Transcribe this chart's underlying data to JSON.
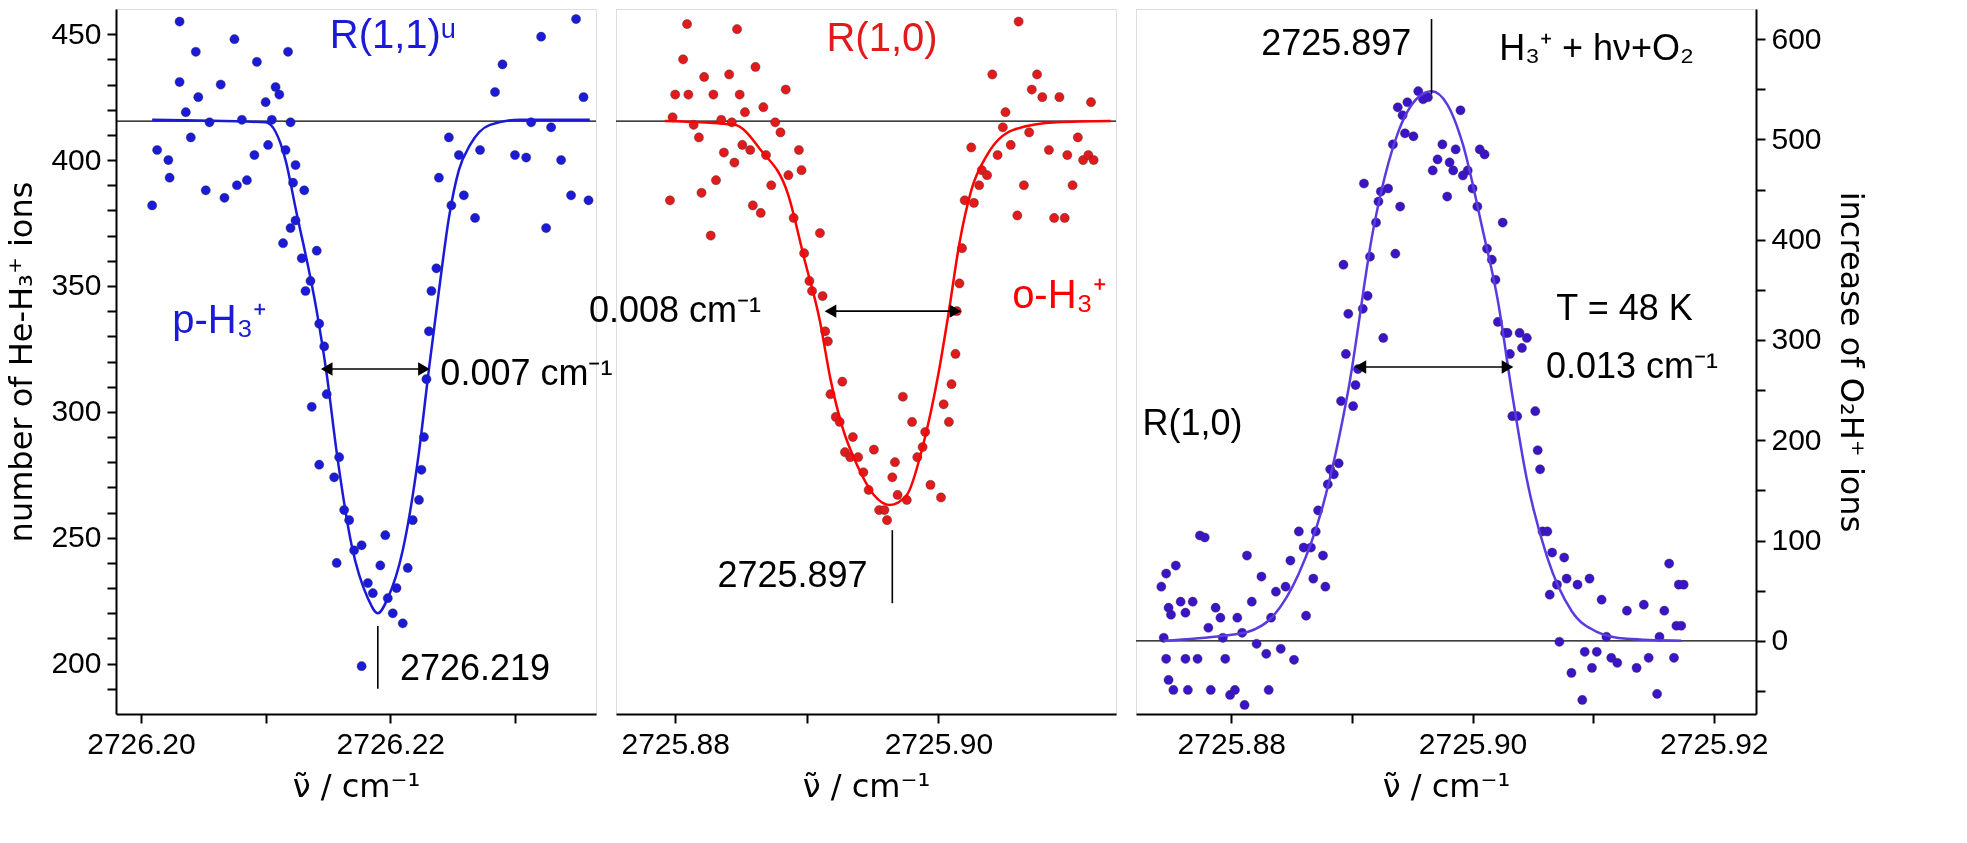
{
  "chart_data": [
    {
      "type": "scatter",
      "xlabel": "ν̃ / cm⁻¹",
      "ylabel": "number of He-H₃⁺ ions",
      "marker": "circle",
      "xlim": [
        2726.198,
        2726.2365
      ],
      "xticks": [
        {
          "value": 2726.2,
          "label": "2726.20"
        },
        {
          "value": 2726.21,
          "label": null
        },
        {
          "value": 2726.22,
          "label": "2726.22"
        },
        {
          "value": 2726.23,
          "label": null
        }
      ],
      "ylim": [
        180,
        460
      ],
      "yticks": [
        {
          "value": 190,
          "label": null
        },
        200,
        {
          "value": 210,
          "label": null
        },
        {
          "value": 220,
          "label": null
        },
        {
          "value": 230,
          "label": null
        },
        {
          "value": 240,
          "label": null
        },
        250,
        {
          "value": 260,
          "label": null
        },
        {
          "value": 270,
          "label": null
        },
        {
          "value": 280,
          "label": null
        },
        {
          "value": 290,
          "label": null
        },
        300,
        {
          "value": 310,
          "label": null
        },
        {
          "value": 320,
          "label": null
        },
        {
          "value": 330,
          "label": null
        },
        {
          "value": 340,
          "label": null
        },
        350,
        {
          "value": 360,
          "label": null
        },
        {
          "value": 370,
          "label": null
        },
        {
          "value": 380,
          "label": null
        },
        {
          "value": 390,
          "label": null
        },
        400,
        {
          "value": 410,
          "label": null
        },
        {
          "value": 420,
          "label": null
        },
        {
          "value": 430,
          "label": null
        },
        {
          "value": 440,
          "label": null
        },
        450
      ],
      "series": [
        {
          "name": "R(1,1)ᵘ",
          "color": "#1a1ad8",
          "x": [
            2726.2009,
            2726.2013,
            2726.2022,
            2726.2023,
            2726.2031,
            2726.2031,
            2726.2036,
            2726.204,
            2726.2044,
            2726.2046,
            2726.2052,
            2726.2055,
            2726.2064,
            2726.2067,
            2726.2075,
            2726.2077,
            2726.2081,
            2726.2085,
            2726.2091,
            2726.2093,
            2726.21,
            2726.2102,
            2726.2105,
            2726.2108,
            2726.2111,
            2726.2116,
            2726.2118,
            2726.212,
            2726.2122,
            2726.2124,
            2726.2131,
            2726.2114,
            2726.212,
            2726.2124,
            2726.2129,
            2726.2132,
            2726.2136,
            2726.2141,
            2726.2143,
            2726.2147,
            2726.2137,
            2726.2149,
            2726.2143,
            2726.2155,
            2726.2159,
            2726.2163,
            2726.2167,
            2726.2157,
            2726.2171,
            2726.2177,
            2726.2182,
            2726.2186,
            2726.2177,
            2726.2192,
            2726.2196,
            2726.2198,
            2726.2202,
            2726.2205,
            2726.221,
            2726.2214,
            2726.2218,
            2726.2223,
            2726.2225,
            2726.2227,
            2726.2229,
            2726.2231,
            2726.2233,
            2726.2237,
            2726.2239,
            2726.2247,
            2726.2249,
            2726.2255,
            2726.2259,
            2726.2268,
            2726.2272,
            2726.2284,
            2726.229,
            2726.23,
            2726.2309,
            2726.2313,
            2726.2325,
            2726.2321,
            2726.2329,
            2726.2337,
            2726.2345,
            2726.2349,
            2726.2355,
            2726.2359
          ],
          "values": [
            382,
            404,
            400,
            393,
            455,
            431,
            419,
            409,
            443,
            425,
            388,
            415,
            430,
            385,
            448,
            390,
            416,
            392,
            402,
            439,
            423,
            406,
            416,
            429,
            426,
            404,
            443,
            415,
            391,
            398,
            388,
            367,
            373,
            376,
            361,
            348,
            352,
            364,
            335,
            326,
            302,
            307,
            279,
            274,
            282,
            261,
            257,
            240,
            245,
            247,
            232,
            228,
            199,
            239,
            251,
            226,
            220,
            230,
            216,
            238,
            257,
            265,
            277,
            290,
            313,
            332,
            348,
            357,
            393,
            409,
            382,
            402,
            386,
            377,
            404,
            427,
            438,
            402,
            401,
            415,
            373,
            449,
            413,
            400,
            386,
            456,
            425,
            384
          ]
        },
        {
          "type": "line",
          "name": "p-H₃⁺",
          "marker": "none",
          "line_style": "solid",
          "color": "#1a1ad8",
          "x": [
            2726.2009,
            2726.21,
            2726.2116,
            2726.2124,
            2726.2141,
            2726.2149,
            2726.2157,
            2726.2169,
            2726.2182,
            2726.219,
            2726.2198,
            2726.221,
            2726.2223,
            2726.2231,
            2726.2239,
            2726.2247,
            2726.2255,
            2726.2264,
            2726.228,
            2726.2304,
            2726.236
          ],
          "values": [
            416,
            415,
            400,
            381,
            340,
            315,
            284,
            247,
            226,
            220,
            226,
            245,
            284,
            317,
            348,
            377,
            396,
            406,
            414,
            416,
            416
          ]
        },
        {
          "type": "line",
          "marker": "triangle",
          "line_style": "solid",
          "color": "#000000",
          "x": [
            2726.2149,
            2726.2227
          ],
          "values": [
            317,
            317
          ]
        },
        {
          "type": "line",
          "marker": "none",
          "line_style": "solid",
          "color": "#000000",
          "x": [
            2726.219,
            2726.219
          ],
          "values": [
            215,
            190
          ]
        }
      ],
      "ref_lines": [
        {
          "axis": "y",
          "value": 415.5,
          "color": "#000000"
        }
      ],
      "annotations": [
        "0.007 cm⁻¹",
        "2726.219"
      ]
    },
    {
      "type": "scatter",
      "xlabel": "ν̃ / cm⁻¹",
      "marker": "circle",
      "tick_labels": "x",
      "xlim": [
        2725.8755,
        2725.9135
      ],
      "xticks": [
        {
          "value": 2725.88,
          "label": "2725.88"
        },
        {
          "value": 2725.89,
          "label": null
        },
        {
          "value": 2725.9,
          "label": "2725.90"
        }
      ],
      "ylim": [
        180,
        460
      ],
      "series": [
        {
          "name": "R(1,0)",
          "color": "#e31a1c",
          "x": [
            2725.8796,
            2725.8798,
            2725.88,
            2725.8806,
            2725.8809,
            2725.881,
            2725.8814,
            2725.8818,
            2725.882,
            2725.8822,
            2725.8827,
            2725.8829,
            2725.8831,
            2725.8835,
            2725.8837,
            2725.8841,
            2725.8843,
            2725.8845,
            2725.8847,
            2725.8849,
            2725.8851,
            2725.8853,
            2725.8857,
            2725.8859,
            2725.8861,
            2725.8865,
            2725.8867,
            2725.8869,
            2725.8873,
            2725.8876,
            2725.888,
            2725.8884,
            2725.8886,
            2725.889,
            2725.8894,
            2725.8896,
            2725.8898,
            2725.8902,
            2725.8904,
            2725.891,
            2725.8912,
            2725.8914,
            2725.8916,
            2725.8918,
            2725.8922,
            2725.8925,
            2725.8927,
            2725.8929,
            2725.8933,
            2725.8935,
            2725.8939,
            2725.8943,
            2725.8947,
            2725.8951,
            2725.8955,
            2725.8959,
            2725.8961,
            2725.8965,
            2725.8967,
            2725.8969,
            2725.8973,
            2725.8976,
            2725.898,
            2725.8984,
            2725.8988,
            2725.899,
            2725.8994,
            2725.9002,
            2725.9004,
            2725.9008,
            2725.901,
            2725.9013,
            2725.9014,
            2725.9016,
            2725.9018,
            2725.902,
            2725.9025,
            2725.9027,
            2725.9031,
            2725.9033,
            2725.9037,
            2725.9041,
            2725.9045,
            2725.9049,
            2725.9051,
            2725.9055,
            2725.906,
            2725.9061,
            2725.9065,
            2725.9069,
            2725.9071,
            2725.9075,
            2725.9079,
            2725.9084,
            2725.9088,
            2725.9092,
            2725.9096,
            2725.9098,
            2725.9102,
            2725.9106,
            2725.911,
            2725.9114,
            2725.9116,
            2725.9118
          ],
          "values": [
            384,
            417,
            426,
            440,
            454,
            426,
            414,
            409,
            387,
            433,
            370,
            426,
            392,
            416,
            403,
            434,
            415,
            399,
            452,
            426,
            406,
            419,
            404,
            382,
            437,
            379,
            421,
            402,
            390,
            415,
            411,
            428,
            394,
            377,
            404,
            396,
            363,
            352,
            348,
            371,
            346,
            332,
            328,
            307,
            298,
            296,
            312,
            284,
            282,
            290,
            282,
            276,
            269,
            285,
            261,
            261,
            257,
            274,
            280,
            267,
            306,
            265,
            296,
            282,
            286,
            292,
            271,
            266,
            303,
            296,
            311,
            323,
            340,
            351,
            365,
            384,
            405,
            383,
            390,
            396,
            394,
            434,
            402,
            413,
            419,
            406,
            378,
            455,
            390,
            411,
            428,
            434,
            425,
            404,
            377,
            425,
            377,
            402,
            390,
            409,
            400,
            402,
            423,
            400
          ]
        },
        {
          "type": "line",
          "name": "o-H₃⁺",
          "marker": "none",
          "line_style": "solid",
          "color": "#ff0000",
          "x": [
            2725.8792,
            2725.8845,
            2725.8865,
            2725.8886,
            2725.8898,
            2725.891,
            2725.8918,
            2725.8927,
            2725.8939,
            2725.8951,
            2725.8963,
            2725.8976,
            2725.8988,
            2725.9,
            2725.9008,
            2725.9016,
            2725.9025,
            2725.9037,
            2725.9057,
            2725.909,
            2725.9131
          ],
          "values": [
            415.5,
            414,
            404,
            386,
            361,
            336,
            313,
            294,
            278,
            267,
            263,
            267,
            286,
            315,
            340,
            367,
            388,
            402,
            412,
            415,
            415.5
          ]
        },
        {
          "type": "line",
          "marker": "triangle",
          "line_style": "solid",
          "color": "#000000",
          "x": [
            2725.8918,
            2725.9013
          ],
          "values": [
            340,
            340
          ]
        },
        {
          "type": "line",
          "marker": "none",
          "line_style": "solid",
          "color": "#000000",
          "x": [
            2725.8965,
            2725.8965
          ],
          "values": [
            253,
            224
          ]
        }
      ],
      "ref_lines": [
        {
          "axis": "y",
          "value": 415.5,
          "color": "#000000"
        }
      ],
      "annotations": [
        "0.008 cm⁻¹",
        "2725.897"
      ]
    },
    {
      "type": "scatter",
      "xlabel": "ν̃ / cm⁻¹",
      "y2label": "increase of O₂H⁺ ions",
      "marker": "circle",
      "xlim": [
        2725.8721,
        2725.9235
      ],
      "xticks": [
        {
          "value": 2725.88,
          "label": "2725.88"
        },
        {
          "value": 2725.89,
          "label": null
        },
        {
          "value": 2725.9,
          "label": "2725.90"
        },
        {
          "value": 2725.91,
          "label": null
        },
        {
          "value": 2725.92,
          "label": "2725.92"
        }
      ],
      "y2lim": [
        -73,
        630
      ],
      "y2ticks": [
        {
          "value": -50,
          "label": null
        },
        0,
        {
          "value": 50,
          "label": null
        },
        100,
        {
          "value": 150,
          "label": null
        },
        200,
        {
          "value": 250,
          "label": null
        },
        300,
        {
          "value": 350,
          "label": null
        },
        400,
        {
          "value": 450,
          "label": null
        },
        500,
        {
          "value": 550,
          "label": null
        },
        600
      ],
      "series": [
        {
          "axis": "y2",
          "color": "#3b14c8",
          "x": [
            2725.8742,
            2725.8746,
            2725.8744,
            2725.8748,
            2725.875,
            2725.8746,
            2725.8748,
            2725.8752,
            2725.8754,
            2725.8758,
            2725.8762,
            2725.8762,
            2725.8764,
            2725.8768,
            2725.8772,
            2725.8774,
            2725.8778,
            2725.8781,
            2725.8783,
            2725.8787,
            2725.8791,
            2725.8793,
            2725.8795,
            2725.8799,
            2725.8803,
            2725.8805,
            2725.8809,
            2725.8811,
            2725.8813,
            2725.8817,
            2725.8821,
            2725.8825,
            2725.8829,
            2725.8831,
            2725.8833,
            2725.8837,
            2725.8841,
            2725.8845,
            2725.8849,
            2725.8852,
            2725.8856,
            2725.886,
            2725.8862,
            2725.8866,
            2725.8868,
            2725.887,
            2725.8872,
            2725.8876,
            2725.8878,
            2725.888,
            2725.8882,
            2725.8885,
            2725.8889,
            2725.8891,
            2725.8893,
            2725.8895,
            2725.8897,
            2725.8901,
            2725.8903,
            2725.8905,
            2725.8909,
            2725.891,
            2725.8913,
            2725.8915,
            2725.892,
            2725.8922,
            2725.8924,
            2725.8926,
            2725.893,
            2725.8934,
            2725.8936,
            2725.8938,
            2725.894,
            2725.8942,
            2725.8944,
            2725.8946,
            2725.8951,
            2725.8955,
            2725.8959,
            2725.8963,
            2725.8967,
            2725.8971,
            2725.8975,
            2725.8979,
            2725.8981,
            2725.8984,
            2725.8986,
            2725.899,
            2725.8992,
            2725.8996,
            2725.9,
            2725.9004,
            2725.9006,
            2725.901,
            2725.9012,
            2725.9016,
            2725.9019,
            2725.9021,
            2725.9025,
            2725.9027,
            2725.9029,
            2725.9031,
            2725.9033,
            2725.9037,
            2725.9039,
            2725.9041,
            2725.9045,
            2725.9052,
            2725.9054,
            2725.9056,
            2725.9058,
            2725.9062,
            2725.9064,
            2725.9066,
            2725.907,
            2725.9072,
            2725.9076,
            2725.9078,
            2725.9082,
            2725.9087,
            2725.9091,
            2725.9093,
            2725.9097,
            2725.9099,
            2725.9103,
            2725.9107,
            2725.9111,
            2725.9115,
            2725.912,
            2725.9128,
            2725.9136,
            2725.9142,
            2725.9146,
            2725.9153,
            2725.9155,
            2725.9159,
            2725.9163,
            2725.9167,
            2725.9169,
            2725.9171,
            2725.9173,
            2725.9175
          ],
          "values": [
            54,
            67,
            3,
            33,
            26,
            -18,
            -39,
            -49,
            75,
            39,
            28,
            -18,
            -49,
            39,
            -18,
            105,
            103,
            13,
            -49,
            33,
            23,
            3,
            -18,
            -54,
            -49,
            23,
            8,
            -64,
            85,
            39,
            -3,
            64,
            -13,
            -49,
            23,
            49,
            -8,
            54,
            80,
            -19,
            109,
            93,
            25,
            93,
            62,
            109,
            130,
            85,
            54,
            156,
            171,
            166,
            177,
            239,
            375,
            286,
            326,
            234,
            255,
            271,
            331,
            456,
            344,
            383,
            417,
            438,
            448,
            302,
            451,
            495,
            386,
            532,
            433,
            524,
            506,
            537,
            503,
            548,
            540,
            542,
            469,
            480,
            495,
            443,
            477,
            469,
            490,
            529,
            464,
            469,
            451,
            433,
            490,
            485,
            391,
            380,
            360,
            318,
            417,
            307,
            307,
            286,
            224,
            224,
            307,
            292,
            302,
            229,
            190,
            171,
            109,
            109,
            46,
            88,
            56,
            -1,
            83,
            62,
            -32,
            56,
            -59,
            -11,
            62,
            -27,
            -11,
            41,
            4,
            -17,
            -22,
            30,
            -27,
            36,
            -17,
            -53,
            4,
            30,
            77,
            -17,
            15,
            56,
            15,
            56
          ]
        },
        {
          "type": "line",
          "axis": "y2",
          "marker": "none",
          "line_style": "solid",
          "color": "#5b3ae0",
          "x": [
            2725.8744,
            2725.8793,
            2725.8814,
            2725.8835,
            2725.8856,
            2725.8876,
            2725.8897,
            2725.8918,
            2725.8938,
            2725.8955,
            2725.8966,
            2725.8979,
            2725.8992,
            2725.9008,
            2725.9021,
            2725.9033,
            2725.9045,
            2725.9062,
            2725.9082,
            2725.9103,
            2725.9128,
            2725.9173
          ],
          "values": [
            0,
            5,
            9,
            25,
            67,
            135,
            250,
            412,
            506,
            542,
            548,
            535,
            495,
            412,
            339,
            245,
            161,
            83,
            30,
            9,
            2,
            0
          ]
        },
        {
          "type": "line",
          "axis": "y2",
          "marker": "triangle",
          "line_style": "solid",
          "color": "#000000",
          "x": [
            2725.8907,
            2725.9029
          ],
          "values": [
            273,
            273
          ]
        },
        {
          "type": "line",
          "axis": "y2",
          "marker": "none",
          "line_style": "solid",
          "color": "#000000",
          "x": [
            2725.8966,
            2725.8966
          ],
          "values": [
            620,
            545
          ]
        }
      ],
      "ref_lines": [
        {
          "axis": "y2",
          "value": 0,
          "color": "#000000"
        }
      ],
      "annotations": [
        "2725.897",
        "H₃⁺ + hν+O₂",
        "T = 48 K",
        "0.013 cm⁻¹",
        "R(1,0)"
      ]
    }
  ]
}
